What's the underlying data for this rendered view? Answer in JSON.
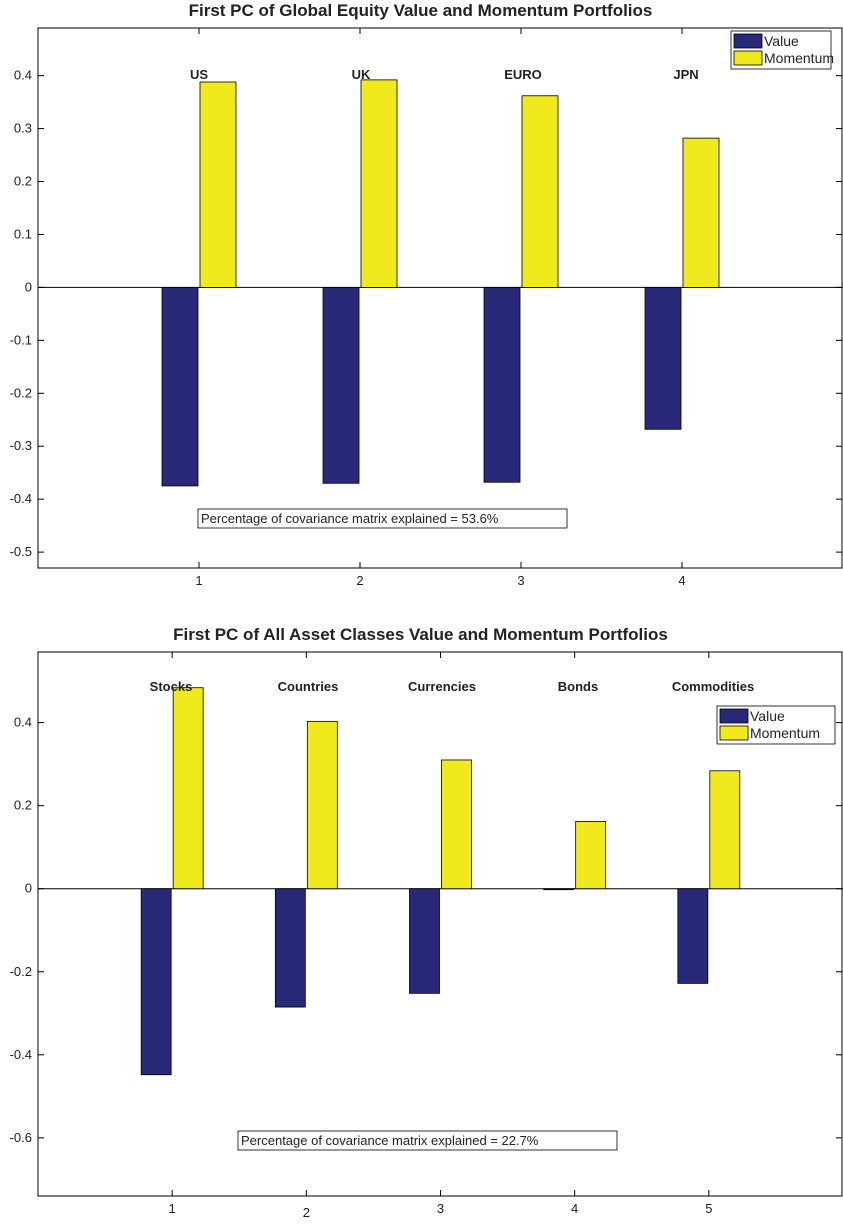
{
  "colors": {
    "value": "#29297a",
    "momentum": "#f0e91c"
  },
  "chart_data": [
    {
      "type": "bar",
      "title": "First PC of Global Equity Value and Momentum Portfolios",
      "categories": [
        "1",
        "2",
        "3",
        "4"
      ],
      "category_labels": [
        "US",
        "UK",
        "EURO",
        "JPN"
      ],
      "series": [
        {
          "name": "Value",
          "values": [
            -0.375,
            -0.37,
            -0.368,
            -0.268
          ]
        },
        {
          "name": "Momentum",
          "values": [
            0.388,
            0.392,
            0.362,
            0.282
          ]
        }
      ],
      "ylim": [
        -0.53,
        0.49
      ],
      "xlim": [
        0.0,
        5.0
      ],
      "yticks": [
        -0.5,
        -0.4,
        -0.3,
        -0.2,
        -0.1,
        0,
        0.1,
        0.2,
        0.3,
        0.4
      ],
      "ytick_labels": [
        "-0.5",
        "-0.4",
        "-0.3",
        "-0.2",
        "-0.1",
        "0",
        "0.1",
        "0.2",
        "0.3",
        "0.4"
      ],
      "annotation": "Percentage of covariance matrix explained = 53.6%",
      "legend_position": "top-right",
      "grid": false
    },
    {
      "type": "bar",
      "title": "First PC of All Asset Classes Value and Momentum Portfolios",
      "categories": [
        "1",
        "2",
        "3",
        "4",
        "5"
      ],
      "category_labels": [
        "Stocks",
        "Countries",
        "Currencies",
        "Bonds",
        "Commodities"
      ],
      "series": [
        {
          "name": "Value",
          "values": [
            -0.448,
            -0.285,
            -0.252,
            -0.002,
            -0.228
          ]
        },
        {
          "name": "Momentum",
          "values": [
            0.484,
            0.403,
            0.31,
            0.162,
            0.284
          ]
        }
      ],
      "ylim": [
        -0.74,
        0.57
      ],
      "xlim": [
        0.0,
        6.0
      ],
      "yticks": [
        -0.6,
        -0.4,
        -0.2,
        0,
        0.2,
        0.4
      ],
      "ytick_labels": [
        "-0.6",
        "-0.4",
        "-0.2",
        "0",
        "0.2",
        "0.4"
      ],
      "annotation": "Percentage of covariance matrix explained = 22.7%",
      "legend_position": "top-right",
      "grid": false
    }
  ]
}
